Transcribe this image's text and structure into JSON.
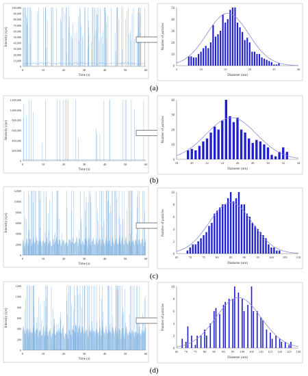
{
  "colors": {
    "trace": "#6fa8dc",
    "trace_dense": "#3d85c6",
    "bar": "#1f1fd0",
    "fit": "#8a8ad8",
    "axis": "#777777"
  },
  "panels": [
    {
      "caption": "(a)",
      "time_trace": {
        "xlabel": "Time (s)",
        "ylabel": "Intensity (cps)",
        "xticks": [
          "0",
          "10",
          "20",
          "30",
          "40",
          "50",
          "60"
        ],
        "yticks": [
          "0",
          "10,000",
          "20,000",
          "30,000",
          "40,000",
          "50,000",
          "60,000",
          "70,000",
          "80,000",
          "90,000",
          "100,000"
        ]
      }
    },
    {
      "caption": "(b)",
      "time_trace": {
        "xlabel": "Time (s)",
        "ylabel": "Intensity (cps)",
        "xticks": [
          "0",
          "10",
          "20",
          "30",
          "40",
          "50",
          "60"
        ],
        "yticks": [
          "0",
          "200,000",
          "400,000",
          "600,000",
          "800,000",
          "1,000,000",
          "1,200,000"
        ]
      }
    },
    {
      "caption": "(c)",
      "time_trace": {
        "xlabel": "Time (s)",
        "ylabel": "Intensity (cps)",
        "xticks": [
          "0",
          "10",
          "20",
          "30",
          "40",
          "50",
          "60"
        ],
        "yticks": [
          "0",
          "2000",
          "4000",
          "6000",
          "8000",
          "10000",
          "12000"
        ]
      }
    },
    {
      "caption": "(d)",
      "time_trace": {
        "xlabel": "Time (s)",
        "ylabel": "Intensity (cps)",
        "xticks": [
          "0",
          "10",
          "20",
          "30",
          "40",
          "50",
          "60"
        ],
        "yticks": [
          "0",
          "200",
          "400",
          "600",
          "800",
          "1000",
          "1200"
        ]
      }
    }
  ],
  "chart_data": [
    {
      "type": "bar",
      "panel": "(a)",
      "xlabel": "Diameter (nm)",
      "ylabel": "Number of particles",
      "xlim": [
        5,
        30
      ],
      "ylim": [
        0,
        50
      ],
      "xticks": [
        "5",
        "10",
        "15",
        "20",
        "25",
        "30"
      ],
      "yticks": [
        "0",
        "10",
        "20",
        "30",
        "40",
        "50"
      ],
      "x": [
        7.5,
        8,
        8.5,
        9,
        9.5,
        10,
        10.5,
        11,
        11.5,
        12,
        12.5,
        13,
        13.5,
        14,
        14.5,
        15,
        15.5,
        16,
        16.5,
        17,
        17.5,
        18,
        18.5,
        19,
        19.5,
        20,
        20.5,
        21,
        21.5,
        22,
        22.5,
        23,
        23.5,
        24,
        24.5,
        25,
        25.5,
        26
      ],
      "values": [
        8,
        8,
        7,
        7,
        10,
        12,
        15,
        17,
        15,
        20,
        35,
        25,
        27,
        30,
        44,
        37,
        40,
        48,
        50,
        50,
        37,
        33,
        29,
        22,
        24,
        20,
        12,
        12,
        10,
        10,
        7,
        6,
        5,
        4,
        3,
        1,
        1,
        2
      ],
      "fit": {
        "type": "gaussian",
        "mean": 15.5,
        "sd": 4.3,
        "peak": 45
      }
    },
    {
      "type": "bar",
      "panel": "(b)",
      "xlabel": "Diameter (nm)",
      "ylabel": "Number of particles",
      "xlim": [
        18,
        34
      ],
      "ylim": [
        0,
        40
      ],
      "xticks": [
        "18",
        "20",
        "22",
        "24",
        "26",
        "28",
        "30",
        "32",
        "34"
      ],
      "yticks": [
        "0",
        "10",
        "20",
        "30",
        "40"
      ],
      "x": [
        19.5,
        20,
        20.5,
        21,
        21.5,
        22,
        22.5,
        23,
        23.5,
        24,
        24.5,
        25,
        25.5,
        26,
        26.5,
        27,
        27.5,
        28,
        28.5,
        29,
        29.5,
        30,
        30.5,
        31,
        31.5,
        32,
        32.5
      ],
      "values": [
        6,
        7,
        6,
        9,
        12,
        14,
        18,
        22,
        20,
        26,
        40,
        29,
        25,
        28,
        20,
        18,
        14,
        11,
        13,
        12,
        10,
        8,
        3,
        2,
        5,
        8,
        5
      ],
      "fit": {
        "type": "gaussian",
        "mean": 25.2,
        "sd": 3.3,
        "peak": 28
      }
    },
    {
      "type": "bar",
      "panel": "(c)",
      "xlabel": "Diameter (nm)",
      "ylabel": "Number of particles",
      "xlim": [
        65,
        110
      ],
      "ylim": [
        0,
        10
      ],
      "xticks": [
        "65",
        "70",
        "75",
        "80",
        "85",
        "90",
        "95",
        "100",
        "105",
        "110"
      ],
      "yticks": [
        "0",
        "2",
        "4",
        "6",
        "8",
        "10"
      ],
      "x": [
        69,
        70,
        71,
        72,
        73,
        74,
        75,
        76,
        77,
        78,
        79,
        80,
        81,
        82,
        83,
        84,
        85,
        86,
        87,
        88,
        89,
        90,
        91,
        92,
        93,
        94,
        95,
        96,
        97,
        98,
        99,
        100,
        101,
        102,
        103
      ],
      "values": [
        0.5,
        1,
        1.5,
        1.5,
        2,
        2.5,
        3,
        3.5,
        4.5,
        5,
        6.5,
        7,
        7.5,
        8,
        8,
        9,
        10,
        8.5,
        9,
        10,
        8,
        8,
        6.5,
        6,
        5,
        4.5,
        4,
        3.5,
        3,
        2.5,
        1.5,
        1,
        1,
        0.5,
        0.5
      ],
      "fit": {
        "type": "gaussian",
        "mean": 85,
        "sd": 8,
        "peak": 8.3
      }
    },
    {
      "type": "bar",
      "panel": "(d)",
      "xlabel": "Diameter (nm)",
      "ylabel": "Number of particles",
      "xlim": [
        65,
        130
      ],
      "ylim": [
        0,
        10
      ],
      "xticks": [
        "65",
        "70",
        "75",
        "80",
        "85",
        "90",
        "95",
        "100",
        "105",
        "110",
        "115",
        "120",
        "125",
        "130"
      ],
      "yticks": [
        "0",
        "2",
        "4",
        "6",
        "8",
        "10"
      ],
      "x": [
        68,
        70,
        71,
        73,
        75,
        76,
        78,
        80,
        81,
        83,
        85,
        86,
        88,
        90,
        91,
        93,
        95,
        96,
        98,
        100,
        101,
        103,
        105,
        106,
        108,
        110,
        111,
        113,
        115,
        116,
        118,
        120,
        121,
        123,
        125,
        126
      ],
      "values": [
        1.5,
        1,
        3.5,
        2,
        0.5,
        2,
        2,
        3,
        2,
        4,
        6,
        6.5,
        5.5,
        7,
        7.5,
        8,
        8,
        10,
        9,
        8,
        6,
        7,
        10,
        6,
        6,
        5,
        4.5,
        3,
        2.5,
        1.5,
        2,
        1.5,
        1,
        1,
        0.5,
        1
      ],
      "fit": {
        "type": "gaussian",
        "mean": 98,
        "sd": 12,
        "peak": 8.2
      }
    }
  ]
}
